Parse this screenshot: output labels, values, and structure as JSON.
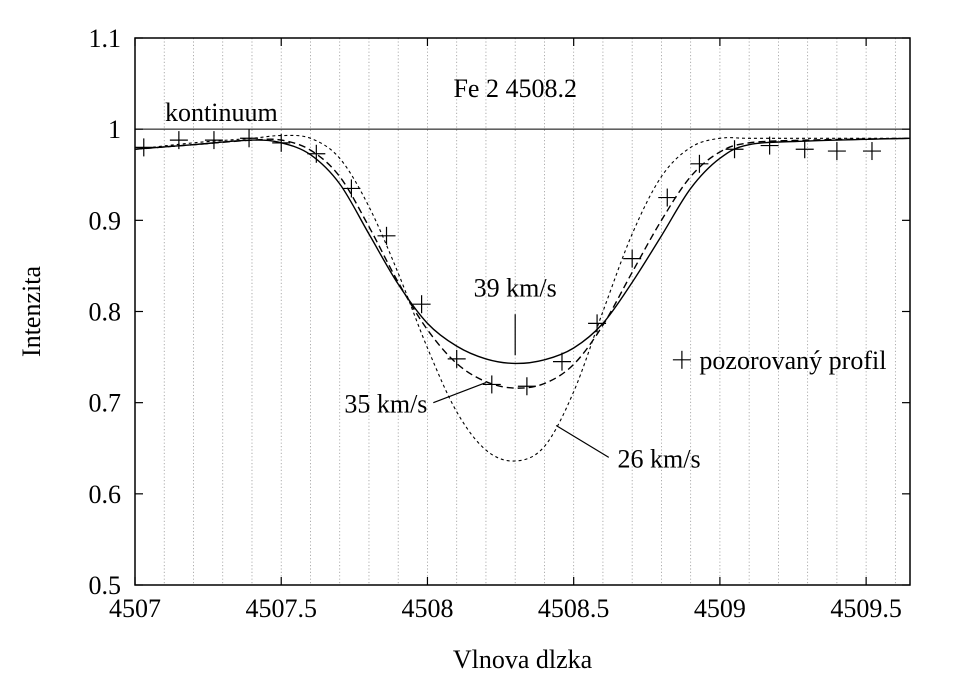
{
  "chart_data": {
    "type": "line",
    "title": "Fe 2 4508.2",
    "xlabel": "Vlnova dlzka",
    "ylabel": "Intenzita",
    "xlim": [
      4507,
      4509.65
    ],
    "ylim": [
      0.5,
      1.1
    ],
    "x_ticks": [
      4507,
      4507.5,
      4508,
      4508.5,
      4509,
      4509.5
    ],
    "x_tick_labels": [
      "4507",
      "4507.5",
      "4508",
      "4508.5",
      "4509",
      "4509.5"
    ],
    "y_ticks": [
      0.5,
      0.6,
      0.7,
      0.8,
      0.9,
      1.0,
      1.1
    ],
    "y_tick_labels": [
      "0.5",
      "0.6",
      "0.7",
      "0.8",
      "0.9",
      "1",
      "1.1"
    ],
    "grid": {
      "vertical": true,
      "horizontal": false
    },
    "continuum": {
      "label": "kontinuum",
      "y": 1.0
    },
    "series": [
      {
        "name": "39 km/s",
        "style": "solid",
        "x": [
          4507.0,
          4507.2,
          4507.4,
          4507.5,
          4507.6,
          4507.7,
          4507.8,
          4507.9,
          4508.0,
          4508.1,
          4508.2,
          4508.3,
          4508.4,
          4508.5,
          4508.6,
          4508.7,
          4508.8,
          4508.9,
          4509.0,
          4509.1,
          4509.3,
          4509.65
        ],
        "y": [
          0.978,
          0.983,
          0.988,
          0.985,
          0.972,
          0.94,
          0.885,
          0.83,
          0.787,
          0.762,
          0.748,
          0.743,
          0.747,
          0.76,
          0.787,
          0.832,
          0.883,
          0.935,
          0.968,
          0.983,
          0.987,
          0.99
        ]
      },
      {
        "name": "35 km/s",
        "style": "dashed",
        "x": [
          4507.0,
          4507.2,
          4507.4,
          4507.5,
          4507.6,
          4507.7,
          4507.8,
          4507.9,
          4508.0,
          4508.1,
          4508.2,
          4508.3,
          4508.4,
          4508.5,
          4508.6,
          4508.7,
          4508.8,
          4508.9,
          4509.0,
          4509.1,
          4509.3,
          4509.65
        ],
        "y": [
          0.978,
          0.983,
          0.988,
          0.988,
          0.977,
          0.948,
          0.893,
          0.832,
          0.78,
          0.743,
          0.723,
          0.716,
          0.721,
          0.742,
          0.785,
          0.843,
          0.9,
          0.948,
          0.975,
          0.985,
          0.988,
          0.99
        ]
      },
      {
        "name": "26 km/s",
        "style": "dotted",
        "x": [
          4507.0,
          4507.2,
          4507.4,
          4507.5,
          4507.6,
          4507.7,
          4507.8,
          4507.9,
          4508.0,
          4508.1,
          4508.2,
          4508.3,
          4508.4,
          4508.5,
          4508.6,
          4508.7,
          4508.8,
          4508.9,
          4509.0,
          4509.1,
          4509.3,
          4509.65
        ],
        "y": [
          0.978,
          0.985,
          0.99,
          0.993,
          0.99,
          0.968,
          0.915,
          0.842,
          0.76,
          0.69,
          0.648,
          0.636,
          0.652,
          0.712,
          0.8,
          0.885,
          0.948,
          0.98,
          0.99,
          0.99,
          0.99,
          0.99
        ]
      }
    ],
    "observed": {
      "name": "pozorovaný profil",
      "marker": "+",
      "x": [
        4507.03,
        4507.15,
        4507.27,
        4507.39,
        4507.5,
        4507.62,
        4507.74,
        4507.86,
        4507.98,
        4508.1,
        4508.22,
        4508.34,
        4508.46,
        4508.58,
        4508.7,
        4508.82,
        4508.93,
        4509.05,
        4509.17,
        4509.29,
        4509.4,
        4509.52
      ],
      "y": [
        0.98,
        0.988,
        0.988,
        0.99,
        0.985,
        0.973,
        0.935,
        0.883,
        0.808,
        0.748,
        0.72,
        0.718,
        0.745,
        0.787,
        0.858,
        0.925,
        0.962,
        0.978,
        0.982,
        0.978,
        0.976,
        0.976
      ]
    },
    "annotations": [
      {
        "text": "39 km/s",
        "series": "39 km/s"
      },
      {
        "text": "35 km/s",
        "series": "35 km/s"
      },
      {
        "text": "26 km/s",
        "series": "26 km/s"
      }
    ],
    "legend": {
      "entry": "pozorovaný profil",
      "marker": "+",
      "position": "right-middle"
    }
  }
}
